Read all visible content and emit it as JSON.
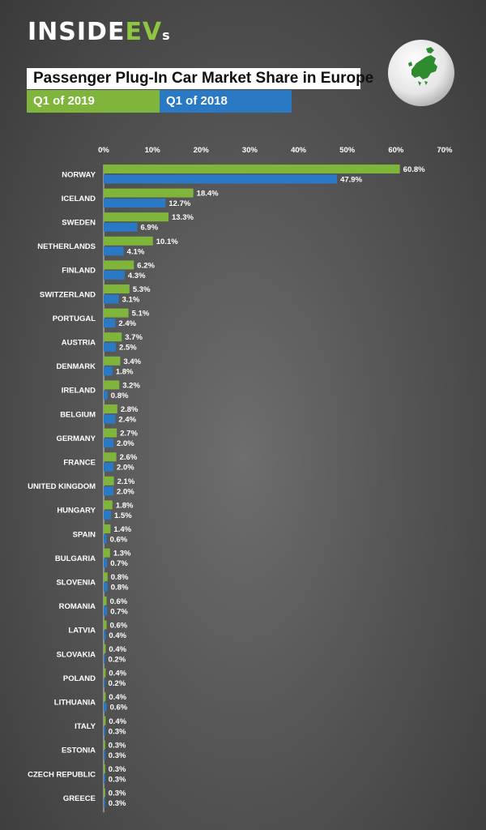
{
  "logo": {
    "prefix": "INSIDE",
    "accent": "EV",
    "suffix": "s"
  },
  "title": "Passenger Plug-In Car Market Share in Europe",
  "legend": [
    {
      "label": "Q1 of 2019",
      "color": "#7fb53a"
    },
    {
      "label": "Q1 of 2018",
      "color": "#2a79c4"
    }
  ],
  "colors": {
    "background": "#5a5a5a",
    "series_2019": "#7fb53a",
    "series_2018": "#2a79c4",
    "globe_land": "#2e8b2e"
  },
  "chart_data": {
    "type": "bar",
    "orientation": "horizontal",
    "xlim": [
      0,
      70
    ],
    "ticks": [
      "0%",
      "10%",
      "20%",
      "30%",
      "40%",
      "50%",
      "60%",
      "70%"
    ],
    "tick_values": [
      0,
      10,
      20,
      30,
      40,
      50,
      60,
      70
    ],
    "grid": false,
    "legend_position": "top-left",
    "categories": [
      "NORWAY",
      "ICELAND",
      "SWEDEN",
      "NETHERLANDS",
      "FINLAND",
      "SWITZERLAND",
      "PORTUGAL",
      "AUSTRIA",
      "DENMARK",
      "IRELAND",
      "BELGIUM",
      "GERMANY",
      "FRANCE",
      "UNITED KINGDOM",
      "HUNGARY",
      "SPAIN",
      "BULGARIA",
      "SLOVENIA",
      "ROMANIA",
      "LATVIA",
      "SLOVAKIA",
      "POLAND",
      "LITHUANIA",
      "ITALY",
      "ESTONIA",
      "CZECH REPUBLIC",
      "GREECE"
    ],
    "series": [
      {
        "name": "Q1 of 2019",
        "values": [
          60.8,
          18.4,
          13.3,
          10.1,
          6.2,
          5.3,
          5.1,
          3.7,
          3.4,
          3.2,
          2.8,
          2.7,
          2.6,
          2.1,
          1.8,
          1.4,
          1.3,
          0.8,
          0.6,
          0.6,
          0.4,
          0.4,
          0.4,
          0.4,
          0.3,
          0.3,
          0.3
        ],
        "labels": [
          "60.8%",
          "18.4%",
          "13.3%",
          "10.1%",
          "6.2%",
          "5.3%",
          "5.1%",
          "3.7%",
          "3.4%",
          "3.2%",
          "2.8%",
          "2.7%",
          "2.6%",
          "2.1%",
          "1.8%",
          "1.4%",
          "1.3%",
          "0.8%",
          "0.6%",
          "0.6%",
          "0.4%",
          "0.4%",
          "0.4%",
          "0.4%",
          "0.3%",
          "0.3%",
          "0.3%"
        ]
      },
      {
        "name": "Q1 of 2018",
        "values": [
          47.9,
          12.7,
          6.9,
          4.1,
          4.3,
          3.1,
          2.4,
          2.5,
          1.8,
          0.8,
          2.4,
          2.0,
          2.0,
          2.0,
          1.5,
          0.6,
          0.7,
          0.8,
          0.7,
          0.4,
          0.2,
          0.2,
          0.6,
          0.3,
          0.3,
          0.3,
          0.3
        ],
        "labels": [
          "47.9%",
          "12.7%",
          "6.9%",
          "4.1%",
          "4.3%",
          "3.1%",
          "2.4%",
          "2.5%",
          "1.8%",
          "0.8%",
          "2.4%",
          "2.0%",
          "2.0%",
          "2.0%",
          "1.5%",
          "0.6%",
          "0.7%",
          "0.8%",
          "0.7%",
          "0.4%",
          "0.2%",
          "0.2%",
          "0.6%",
          "0.3%",
          "0.3%",
          "0.3%",
          "0.3%"
        ]
      }
    ]
  }
}
